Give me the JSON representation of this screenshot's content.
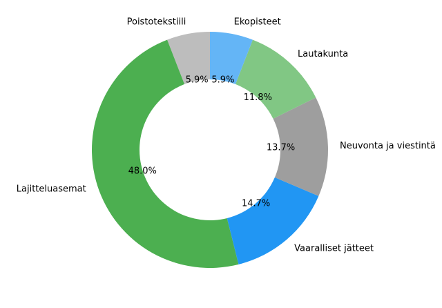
{
  "chart_data": {
    "type": "pie",
    "donut": true,
    "start_angle_deg": 90,
    "direction": "counterclockwise",
    "slices": [
      {
        "label": "Poistotekstiili",
        "pct": "5.9%",
        "value": 5.9,
        "color": "#bdbdbd"
      },
      {
        "label": "Lajitteluasemat",
        "pct": "48.0%",
        "value": 48.0,
        "color": "#4caf50"
      },
      {
        "label": "Vaaralliset jätteet",
        "pct": "14.7%",
        "value": 14.7,
        "color": "#2196f3"
      },
      {
        "label": "Neuvonta ja viestintä",
        "pct": "13.7%",
        "value": 13.7,
        "color": "#9e9e9e"
      },
      {
        "label": "Lautakunta",
        "pct": "11.8%",
        "value": 11.8,
        "color": "#81c784"
      },
      {
        "label": "Ekopisteet",
        "pct": "5.9%",
        "value": 5.9,
        "color": "#64b5f6"
      }
    ]
  }
}
